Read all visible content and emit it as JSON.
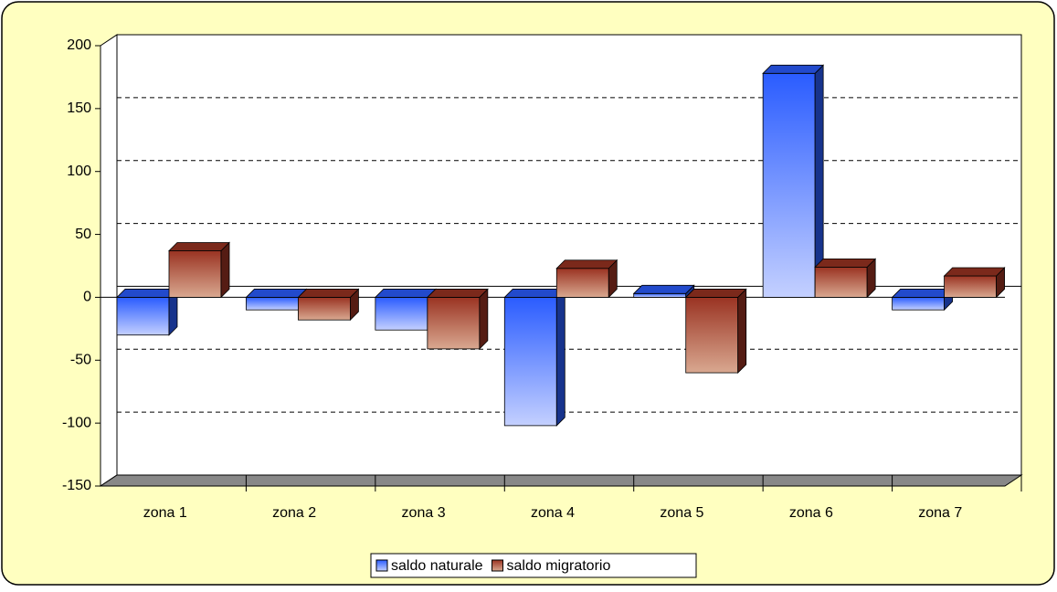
{
  "chart_data": {
    "type": "bar3d",
    "categories": [
      "zona 1",
      "zona 2",
      "zona 3",
      "zona 4",
      "zona 5",
      "zona 6",
      "zona 7"
    ],
    "series": [
      {
        "name": "saldo naturale",
        "color": "#2a5cff",
        "values": [
          -30,
          -10,
          -26,
          -102,
          3,
          178,
          -10
        ]
      },
      {
        "name": "saldo migratorio",
        "color": "#9a3322",
        "values": [
          37,
          -18,
          -41,
          23,
          -60,
          24,
          17
        ]
      }
    ],
    "ylim": [
      -150,
      200
    ],
    "yticks": [
      -150,
      -100,
      -50,
      0,
      50,
      100,
      150,
      200
    ],
    "grid": true,
    "legend": "bottom"
  }
}
